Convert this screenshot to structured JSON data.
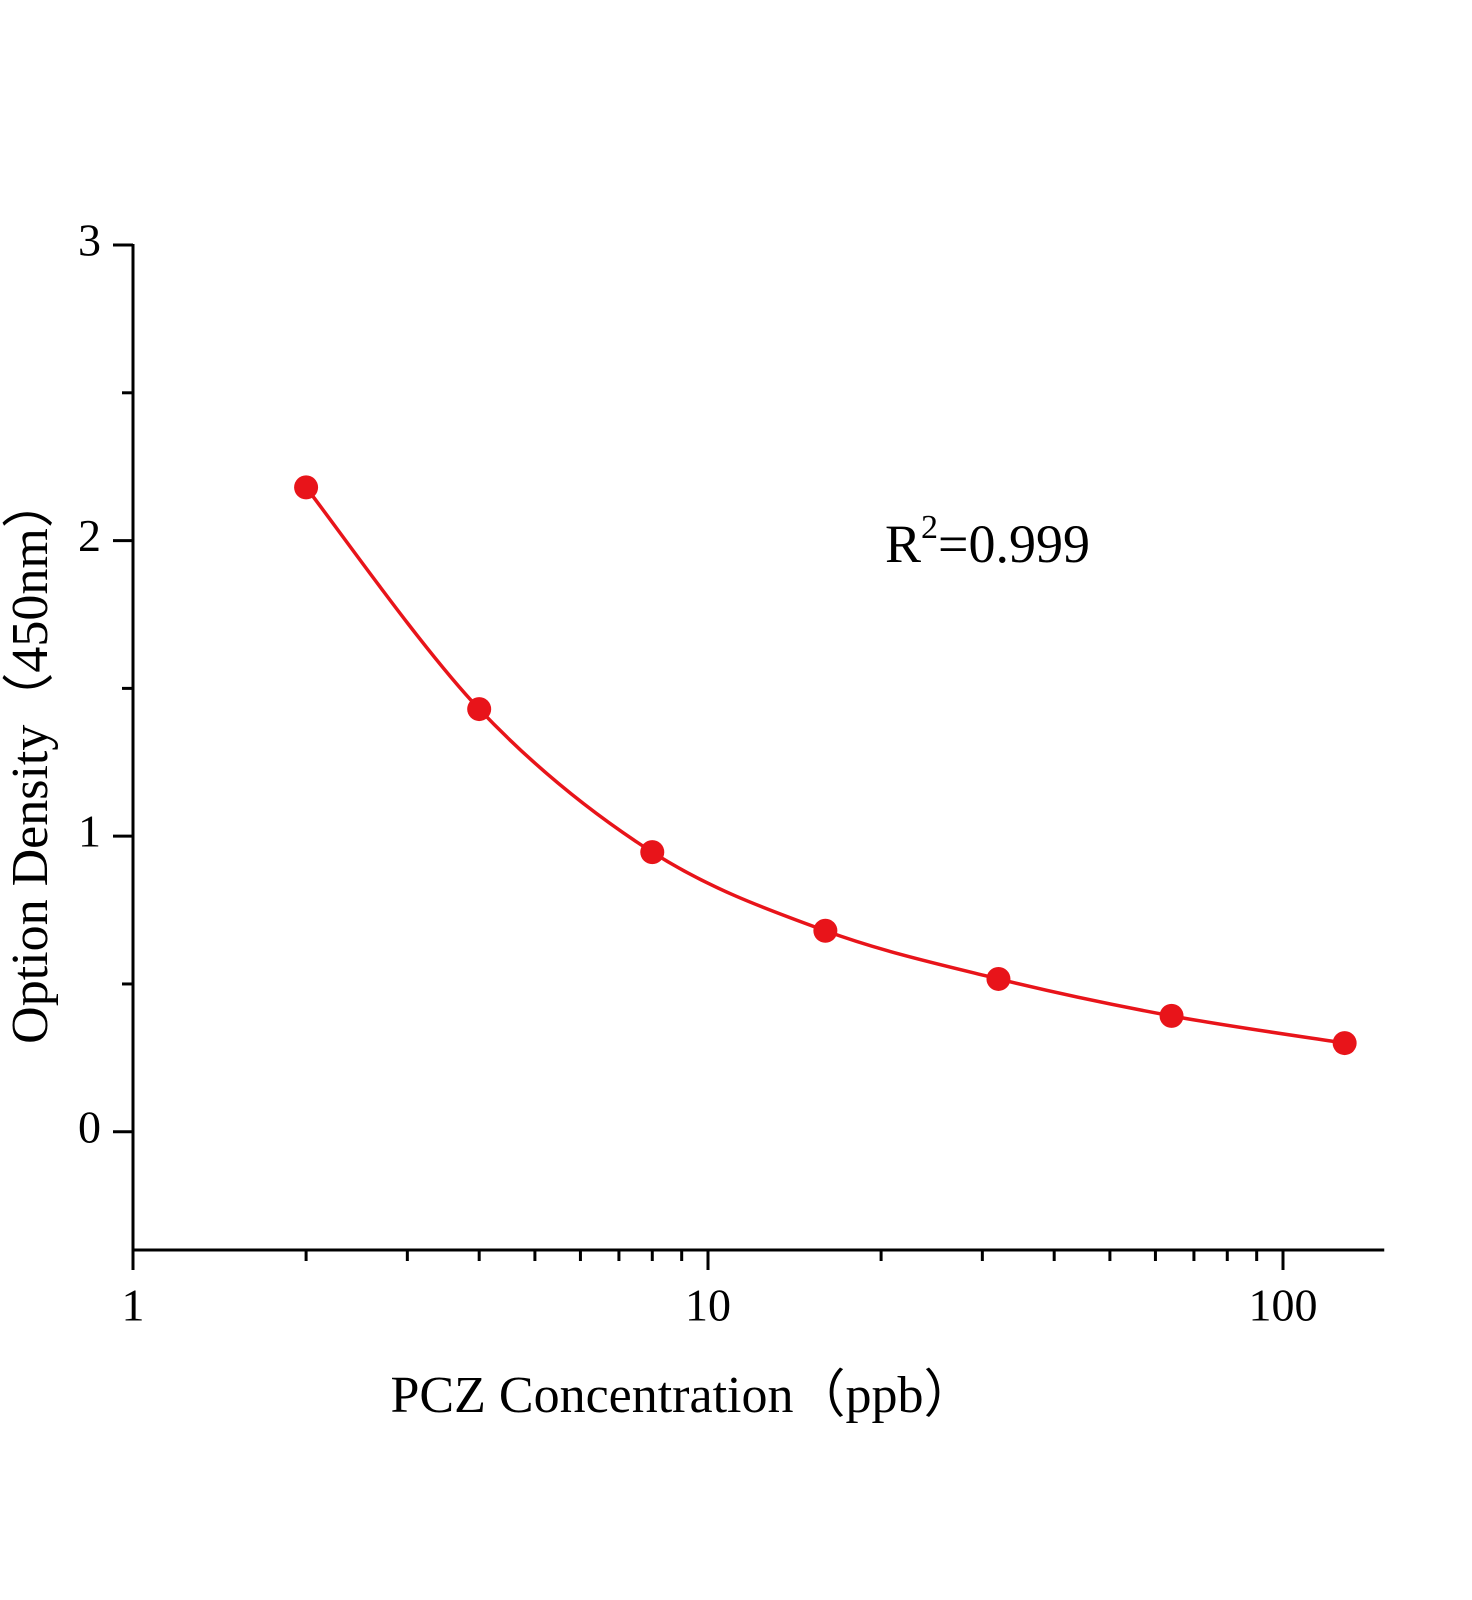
{
  "chart_data": {
    "type": "scatter",
    "x_label": "PCZ Concentration（ppb）",
    "y_label": "Option Density（450nm）",
    "annotation": {
      "base": "R",
      "sup": "2",
      "rest": "=0.999"
    },
    "x": [
      2,
      4,
      8,
      16,
      32,
      64,
      128
    ],
    "values": [
      2.18,
      1.43,
      0.946,
      0.68,
      0.517,
      0.392,
      0.3
    ],
    "color": "#e8141a",
    "fit_line": true,
    "xscale": "log",
    "xlim": [
      1,
      150
    ],
    "xticks": [
      1,
      10,
      100
    ],
    "xminorticks": [
      2,
      3,
      4,
      5,
      6,
      7,
      8,
      9,
      20,
      30,
      40,
      50,
      60,
      70,
      80,
      90
    ],
    "ylim": [
      -0.4,
      3
    ],
    "yticks": [
      0,
      1,
      2,
      3
    ],
    "yminorticks": [
      0.5,
      1.5,
      2.5
    ]
  }
}
